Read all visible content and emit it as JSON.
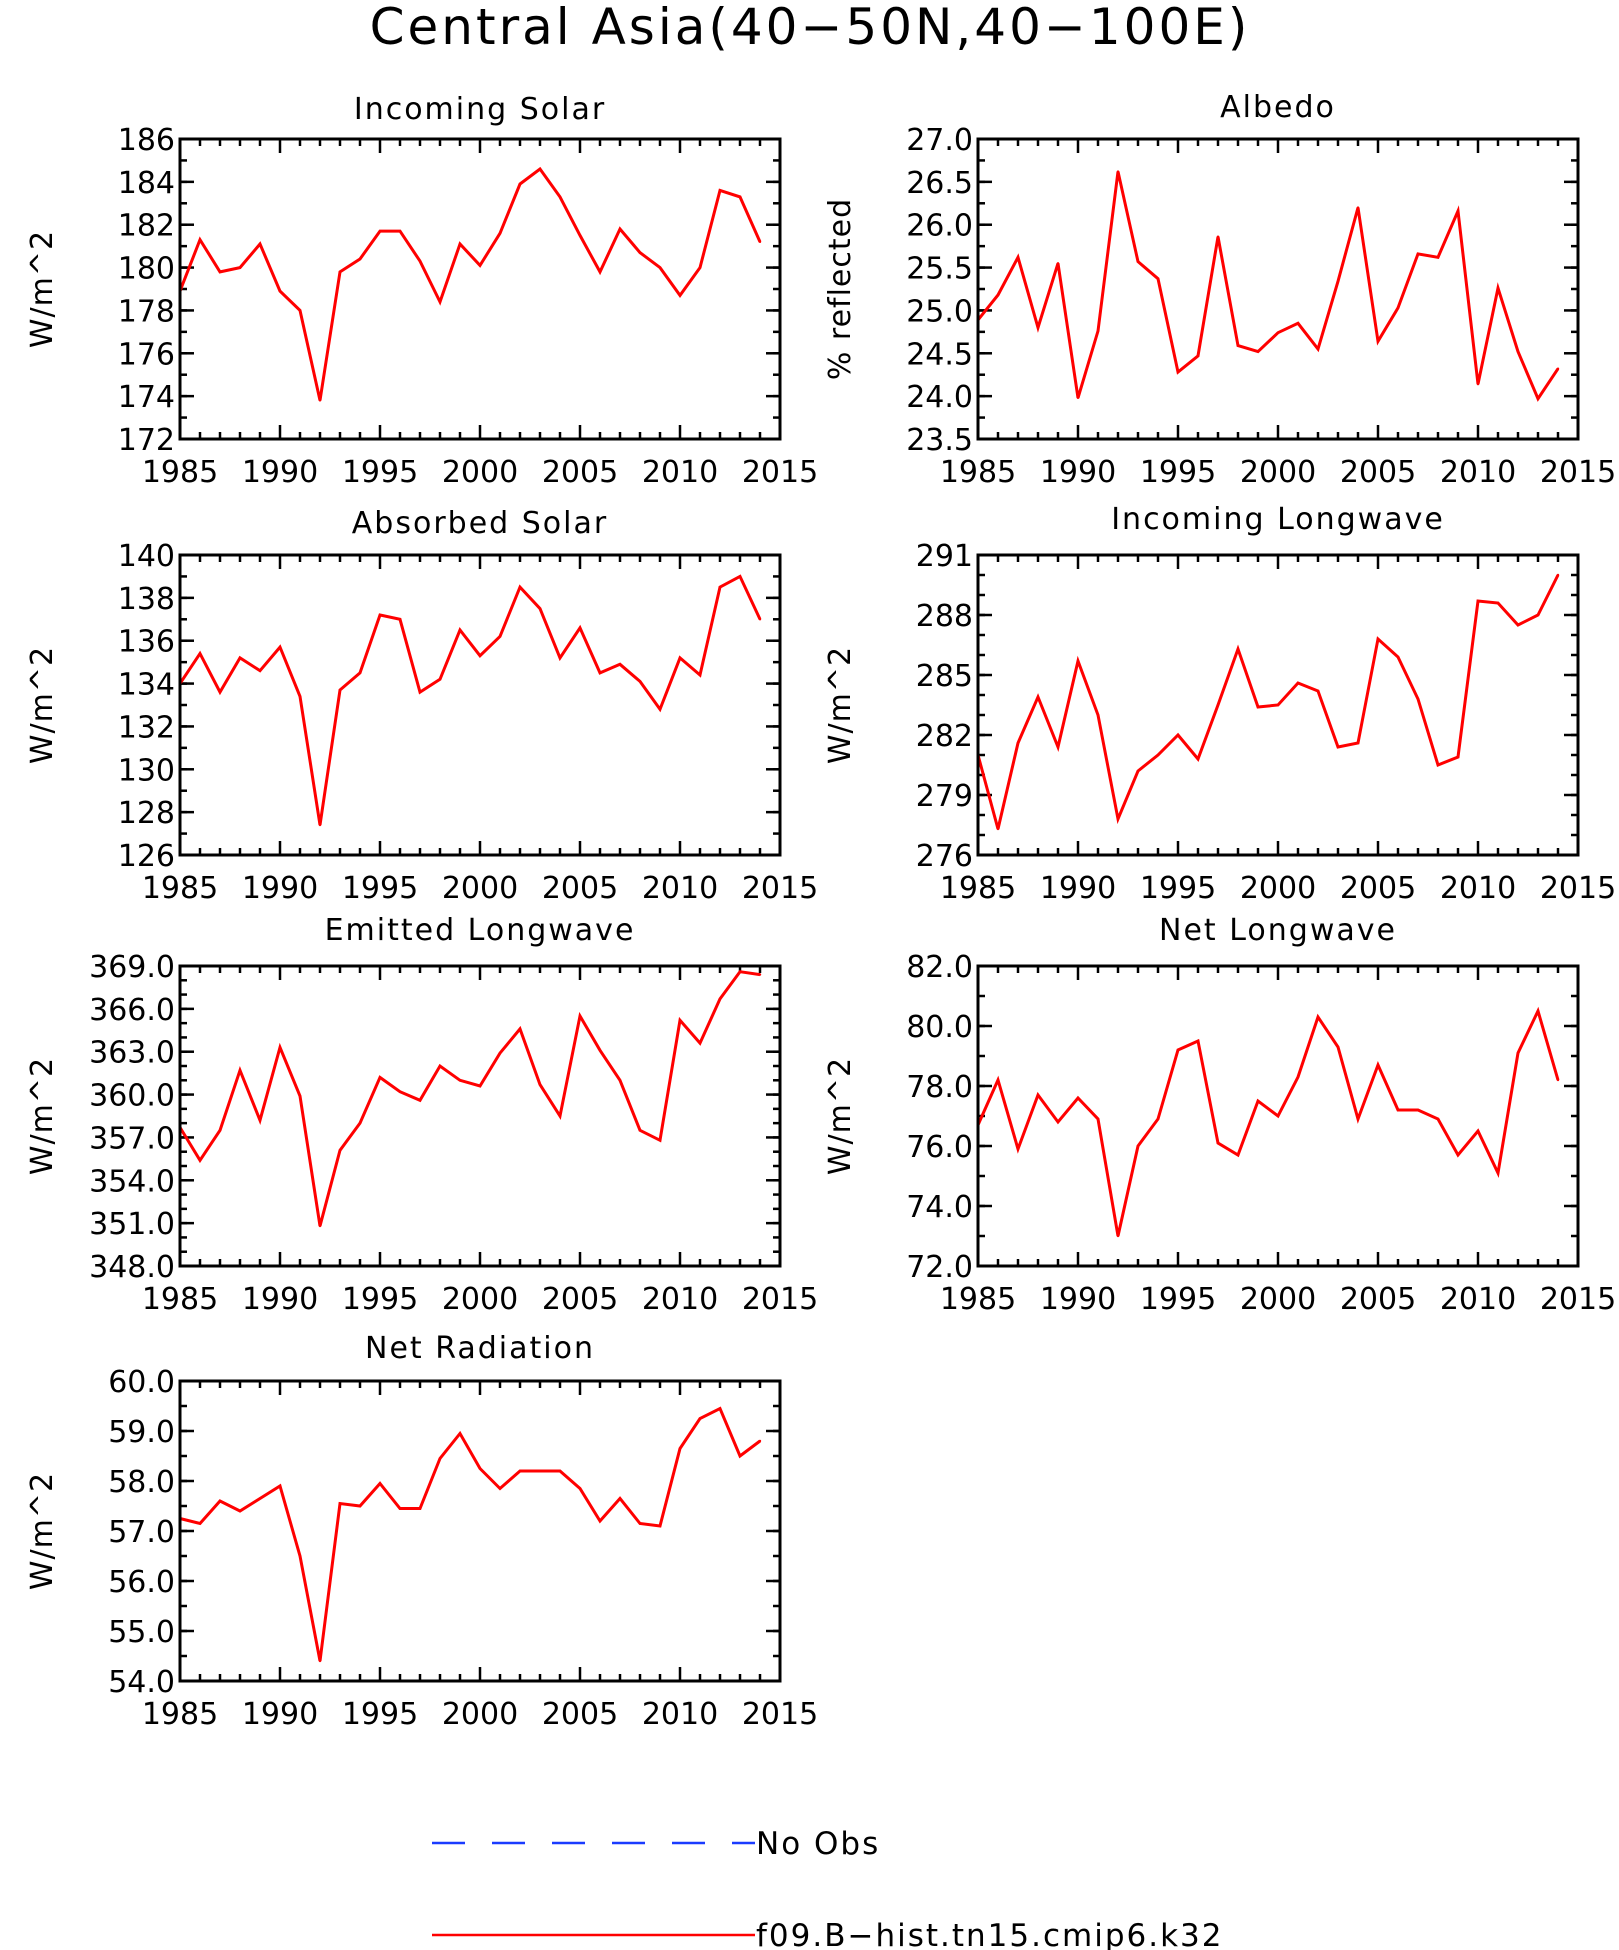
{
  "figure": {
    "title": "Central Asia(40−50N,40−100E)"
  },
  "legend": [
    {
      "label": "No Obs",
      "color": "#1a3bff",
      "dash": true
    },
    {
      "label": "f09.B−hist.tn15.cmip6.k32",
      "color": "#ff0000",
      "dash": false
    }
  ],
  "chart_data": [
    {
      "type": "line",
      "title": "Incoming Solar",
      "ylabel": "W/m^2",
      "xlim": [
        1985,
        2015
      ],
      "ylim": [
        172,
        186
      ],
      "xticks": [
        1985,
        1990,
        1995,
        2000,
        2005,
        2010,
        2015
      ],
      "yticks": [
        172,
        174,
        176,
        178,
        180,
        182,
        184,
        186
      ],
      "ytick_labels": [
        "172",
        "174",
        "176",
        "178",
        "180",
        "182",
        "184",
        "186"
      ],
      "yminor": 1,
      "x": [
        1985,
        1986,
        1987,
        1988,
        1989,
        1990,
        1991,
        1992,
        1993,
        1994,
        1995,
        1996,
        1997,
        1998,
        1999,
        2000,
        2001,
        2002,
        2003,
        2004,
        2005,
        2006,
        2007,
        2008,
        2009,
        2010,
        2011,
        2012,
        2013,
        2014
      ],
      "series": [
        {
          "color": "#ff0000",
          "values": [
            178.9,
            181.3,
            179.8,
            180.0,
            181.1,
            178.9,
            178.0,
            173.8,
            179.8,
            180.4,
            181.7,
            181.7,
            180.3,
            178.4,
            181.1,
            180.1,
            181.6,
            183.9,
            184.6,
            183.3,
            181.5,
            179.8,
            181.8,
            180.7,
            180.0,
            178.7,
            180.0,
            183.6,
            183.3,
            181.2
          ]
        }
      ]
    },
    {
      "type": "line",
      "title": "Albedo",
      "ylabel": "% reflected",
      "xlim": [
        1985,
        2015
      ],
      "ylim": [
        23.5,
        27.0
      ],
      "xticks": [
        1985,
        1990,
        1995,
        2000,
        2005,
        2010,
        2015
      ],
      "yticks": [
        23.5,
        24.0,
        24.5,
        25.0,
        25.5,
        26.0,
        26.5,
        27.0
      ],
      "ytick_labels": [
        "23.5",
        "24.0",
        "24.5",
        "25.0",
        "25.5",
        "26.0",
        "26.5",
        "27.0"
      ],
      "yminor": 0.25,
      "x": [
        1985,
        1986,
        1987,
        1988,
        1989,
        1990,
        1991,
        1992,
        1993,
        1994,
        1995,
        1996,
        1997,
        1998,
        1999,
        2000,
        2001,
        2002,
        2003,
        2004,
        2005,
        2006,
        2007,
        2008,
        2009,
        2010,
        2011,
        2012,
        2013,
        2014
      ],
      "series": [
        {
          "color": "#ff0000",
          "values": [
            24.89,
            25.18,
            25.62,
            24.8,
            25.55,
            23.98,
            24.76,
            26.62,
            25.57,
            25.37,
            24.28,
            24.47,
            25.86,
            24.59,
            24.52,
            24.74,
            24.85,
            24.55,
            25.34,
            26.2,
            24.64,
            25.03,
            25.66,
            25.62,
            26.16,
            24.14,
            25.26,
            24.52,
            23.97,
            24.32
          ]
        }
      ]
    },
    {
      "type": "line",
      "title": "Absorbed Solar",
      "ylabel": "W/m^2",
      "xlim": [
        1985,
        2015
      ],
      "ylim": [
        126,
        140
      ],
      "xticks": [
        1985,
        1990,
        1995,
        2000,
        2005,
        2010,
        2015
      ],
      "yticks": [
        126,
        128,
        130,
        132,
        134,
        136,
        138,
        140
      ],
      "ytick_labels": [
        "126",
        "128",
        "130",
        "132",
        "134",
        "136",
        "138",
        "140"
      ],
      "yminor": 1,
      "x": [
        1985,
        1986,
        1987,
        1988,
        1989,
        1990,
        1991,
        1992,
        1993,
        1994,
        1995,
        1996,
        1997,
        1998,
        1999,
        2000,
        2001,
        2002,
        2003,
        2004,
        2005,
        2006,
        2007,
        2008,
        2009,
        2010,
        2011,
        2012,
        2013,
        2014
      ],
      "series": [
        {
          "color": "#ff0000",
          "values": [
            134.0,
            135.4,
            133.6,
            135.2,
            134.6,
            135.7,
            133.4,
            127.4,
            133.7,
            134.5,
            137.2,
            137.0,
            133.6,
            134.2,
            136.5,
            135.3,
            136.2,
            138.5,
            137.5,
            135.2,
            136.6,
            134.5,
            134.9,
            134.1,
            132.8,
            135.2,
            134.4,
            138.5,
            139.0,
            137.0
          ]
        }
      ]
    },
    {
      "type": "line",
      "title": "Incoming Longwave",
      "ylabel": "W/m^2",
      "xlim": [
        1985,
        2015
      ],
      "ylim": [
        276,
        291
      ],
      "xticks": [
        1985,
        1990,
        1995,
        2000,
        2005,
        2010,
        2015
      ],
      "yticks": [
        276,
        279,
        282,
        285,
        288,
        291
      ],
      "ytick_labels": [
        "276",
        "279",
        "282",
        "285",
        "288",
        "291"
      ],
      "yminor": 1,
      "x": [
        1985,
        1986,
        1987,
        1988,
        1989,
        1990,
        1991,
        1992,
        1993,
        1994,
        1995,
        1996,
        1997,
        1998,
        1999,
        2000,
        2001,
        2002,
        2003,
        2004,
        2005,
        2006,
        2007,
        2008,
        2009,
        2010,
        2011,
        2012,
        2013,
        2014
      ],
      "series": [
        {
          "color": "#ff0000",
          "values": [
            281.0,
            277.3,
            281.6,
            283.9,
            281.4,
            285.7,
            283.0,
            277.8,
            280.2,
            281.0,
            282.0,
            280.8,
            283.5,
            286.3,
            283.4,
            283.5,
            284.6,
            284.2,
            281.4,
            281.6,
            286.8,
            285.9,
            283.8,
            280.5,
            280.9,
            288.7,
            288.6,
            287.5,
            288.0,
            290.0
          ]
        }
      ]
    },
    {
      "type": "line",
      "title": "Emitted Longwave",
      "ylabel": "W/m^2",
      "xlim": [
        1985,
        2015
      ],
      "ylim": [
        348,
        369
      ],
      "xticks": [
        1985,
        1990,
        1995,
        2000,
        2005,
        2010,
        2015
      ],
      "yticks": [
        348,
        351,
        354,
        357,
        360,
        363,
        366,
        369
      ],
      "ytick_labels": [
        "348.0",
        "351.0",
        "354.0",
        "357.0",
        "360.0",
        "363.0",
        "366.0",
        "369.0"
      ],
      "yminor": 1,
      "x": [
        1985,
        1986,
        1987,
        1988,
        1989,
        1990,
        1991,
        1992,
        1993,
        1994,
        1995,
        1996,
        1997,
        1998,
        1999,
        2000,
        2001,
        2002,
        2003,
        2004,
        2005,
        2006,
        2007,
        2008,
        2009,
        2010,
        2011,
        2012,
        2013,
        2014
      ],
      "series": [
        {
          "color": "#ff0000",
          "values": [
            357.7,
            355.4,
            357.5,
            361.7,
            358.2,
            363.3,
            359.9,
            350.8,
            356.1,
            358.0,
            361.2,
            360.2,
            359.6,
            362.0,
            361.0,
            360.6,
            362.9,
            364.6,
            360.7,
            358.5,
            365.5,
            363.1,
            361.0,
            357.5,
            356.8,
            365.2,
            363.6,
            366.7,
            368.6,
            368.4
          ]
        }
      ]
    },
    {
      "type": "line",
      "title": "Net Longwave",
      "ylabel": "W/m^2",
      "xlim": [
        1985,
        2015
      ],
      "ylim": [
        72,
        82
      ],
      "xticks": [
        1985,
        1990,
        1995,
        2000,
        2005,
        2010,
        2015
      ],
      "yticks": [
        72,
        74,
        76,
        78,
        80,
        82
      ],
      "ytick_labels": [
        "72.0",
        "74.0",
        "76.0",
        "78.0",
        "80.0",
        "82.0"
      ],
      "yminor": 1,
      "x": [
        1985,
        1986,
        1987,
        1988,
        1989,
        1990,
        1991,
        1992,
        1993,
        1994,
        1995,
        1996,
        1997,
        1998,
        1999,
        2000,
        2001,
        2002,
        2003,
        2004,
        2005,
        2006,
        2007,
        2008,
        2009,
        2010,
        2011,
        2012,
        2013,
        2014
      ],
      "series": [
        {
          "color": "#ff0000",
          "values": [
            76.7,
            78.2,
            75.9,
            77.7,
            76.8,
            77.6,
            76.9,
            73.0,
            76.0,
            76.9,
            79.2,
            79.5,
            76.1,
            75.7,
            77.5,
            77.0,
            78.3,
            80.3,
            79.3,
            76.9,
            78.7,
            77.2,
            77.2,
            76.9,
            75.7,
            76.5,
            75.1,
            79.1,
            80.5,
            78.2
          ]
        }
      ]
    },
    {
      "type": "line",
      "title": "Net Radiation",
      "ylabel": "W/m^2",
      "xlim": [
        1985,
        2015
      ],
      "ylim": [
        54,
        60
      ],
      "xticks": [
        1985,
        1990,
        1995,
        2000,
        2005,
        2010,
        2015
      ],
      "yticks": [
        54,
        55,
        56,
        57,
        58,
        59,
        60
      ],
      "ytick_labels": [
        "54.0",
        "55.0",
        "56.0",
        "57.0",
        "58.0",
        "59.0",
        "60.0"
      ],
      "yminor": 0.5,
      "x": [
        1985,
        1986,
        1987,
        1988,
        1989,
        1990,
        1991,
        1992,
        1993,
        1994,
        1995,
        1996,
        1997,
        1998,
        1999,
        2000,
        2001,
        2002,
        2003,
        2004,
        2005,
        2006,
        2007,
        2008,
        2009,
        2010,
        2011,
        2012,
        2013,
        2014
      ],
      "series": [
        {
          "color": "#ff0000",
          "values": [
            57.25,
            57.15,
            57.6,
            57.4,
            57.65,
            57.9,
            56.5,
            54.4,
            57.55,
            57.5,
            57.95,
            57.45,
            57.45,
            58.45,
            58.95,
            58.25,
            57.85,
            58.2,
            58.2,
            58.2,
            57.85,
            57.2,
            57.65,
            57.15,
            57.1,
            58.65,
            59.25,
            59.45,
            58.5,
            58.8
          ]
        }
      ]
    }
  ]
}
